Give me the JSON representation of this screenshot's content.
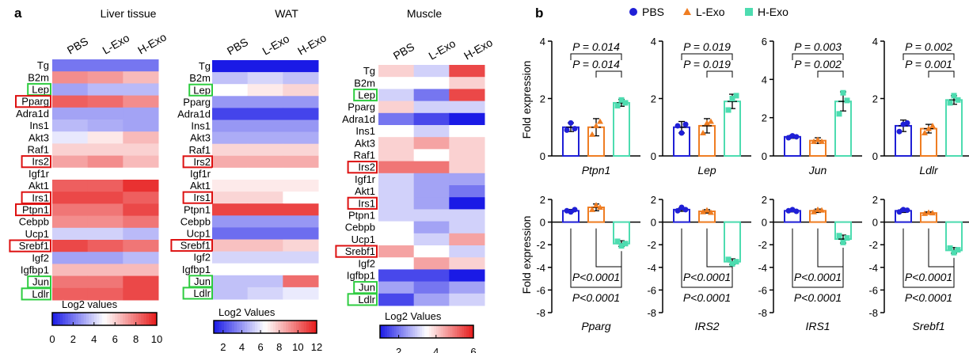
{
  "panel_a_label": "a",
  "panel_b_label": "b",
  "heatmap_legend_label": "Log2 values",
  "colors": {
    "low": "#1a1ae6",
    "mid": "#ffffff",
    "high": "#e61a1a",
    "pbs": "#1f1fd6",
    "lexo": "#ef7d22",
    "hexo": "#4ddcb0",
    "box_green": "#2ecc40",
    "box_red": "#dd1111"
  },
  "chart_data": [
    {
      "type": "heatmap",
      "title": "Liver tissue",
      "columns": [
        "PBS",
        "L-Exo",
        "H-Exo"
      ],
      "rows": [
        "Tg",
        "B2m",
        "Lep",
        "Pparg",
        "Adra1d",
        "Ins1",
        "Akt3",
        "Raf1",
        "Irs2",
        "Igf1r",
        "Akt1",
        "Irs1",
        "Ptpn1",
        "Cebpb",
        "Ucp1",
        "Srebf1",
        "Igf2",
        "Igfbp1",
        "Jun",
        "Ldlr"
      ],
      "values": [
        [
          2,
          2,
          2
        ],
        [
          7.5,
          7.2,
          6.5
        ],
        [
          3,
          3.5,
          3.5
        ],
        [
          8.5,
          8.2,
          7.5
        ],
        [
          3,
          3,
          3
        ],
        [
          3.5,
          3.2,
          3
        ],
        [
          4.5,
          5.5,
          6.5
        ],
        [
          6,
          6,
          6
        ],
        [
          7,
          7.5,
          6.5
        ],
        [
          5,
          5,
          5
        ],
        [
          8.5,
          8.5,
          9.5
        ],
        [
          9,
          9,
          8.5
        ],
        [
          8,
          8,
          9
        ],
        [
          7.5,
          7.5,
          8
        ],
        [
          4,
          4,
          3.5
        ],
        [
          9,
          8.5,
          8
        ],
        [
          3,
          3,
          3.5
        ],
        [
          6.5,
          6.5,
          6.5
        ],
        [
          8,
          8,
          9
        ],
        [
          8.5,
          8.5,
          9
        ]
      ],
      "legend": {
        "label": "Log2 values",
        "ticks": [
          0,
          2,
          4,
          6,
          8,
          10
        ],
        "range": [
          0,
          10
        ]
      },
      "boxed_green": [
        "Lep",
        "Jun",
        "Ldlr"
      ],
      "boxed_red": [
        "Pparg",
        "Irs2",
        "Irs1",
        "Ptpn1",
        "Srebf1"
      ]
    },
    {
      "type": "heatmap",
      "title": "WAT",
      "columns": [
        "PBS",
        "L-Exo",
        "H-Exo"
      ],
      "rows": [
        "Tg",
        "B2m",
        "Lep",
        "Pparg",
        "Adra1d",
        "Ins1",
        "Akt3",
        "Raf1",
        "Irs2",
        "Igf1r",
        "Akt1",
        "Irs1",
        "Ptpn1",
        "Cebpb",
        "Ucp1",
        "Srebf1",
        "Igf2",
        "Igfbp1",
        "Jun",
        "Ldlr"
      ],
      "values": [
        [
          1,
          1,
          1
        ],
        [
          5,
          5.5,
          5
        ],
        [
          6.5,
          7,
          7.5
        ],
        [
          4,
          4,
          4
        ],
        [
          2,
          2,
          2
        ],
        [
          4,
          4,
          4
        ],
        [
          4.5,
          4.5,
          4.5
        ],
        [
          7.5,
          7.5,
          7.5
        ],
        [
          8.5,
          8.5,
          8.5
        ],
        [
          6.5,
          6.5,
          6.5
        ],
        [
          7,
          7,
          7
        ],
        [
          7.5,
          7.5,
          6.5
        ],
        [
          11,
          11,
          11
        ],
        [
          4,
          4,
          4
        ],
        [
          3,
          3,
          3
        ],
        [
          8,
          8,
          7.5
        ],
        [
          5.5,
          5.5,
          5.5
        ],
        [
          6.5,
          6.5,
          6.5
        ],
        [
          5,
          5,
          10
        ],
        [
          5,
          5.5,
          6
        ]
      ],
      "legend": {
        "label": "Log2 Values",
        "ticks": [
          2,
          4,
          6,
          8,
          10,
          12
        ],
        "range": [
          1,
          12
        ]
      },
      "boxed_green": [
        "Lep",
        "Jun",
        "Ldlr"
      ],
      "boxed_red": [
        "Irs2",
        "Irs1",
        "Srebf1"
      ]
    },
    {
      "type": "heatmap",
      "title": "Muscle",
      "columns": [
        "PBS",
        "L-Exo",
        "H-Exo"
      ],
      "rows": [
        "Tg",
        "B2m",
        "Lep",
        "Pparg",
        "Adra1d",
        "Ins1",
        "Akt3",
        "Raf1",
        "Irs2",
        "Igf1r",
        "Akt1",
        "Irs1",
        "Ptpn1",
        "Cebpb",
        "Ucp1",
        "Srebf1",
        "Igf2",
        "Igfbp1",
        "Jun",
        "Ldlr"
      ],
      "values": [
        [
          4,
          3,
          5.5
        ],
        [
          3.5,
          3.5,
          4
        ],
        [
          3,
          2,
          5.5
        ],
        [
          4,
          3,
          3
        ],
        [
          2,
          1.5,
          1
        ],
        [
          3.5,
          3,
          3.5
        ],
        [
          4,
          4.5,
          4
        ],
        [
          4,
          3.5,
          4
        ],
        [
          5,
          5,
          4
        ],
        [
          3,
          2.5,
          2.5
        ],
        [
          3,
          2.5,
          2
        ],
        [
          3,
          2.5,
          1
        ],
        [
          3,
          3,
          3
        ],
        [
          3.5,
          2.5,
          3
        ],
        [
          3.5,
          3,
          4.5
        ],
        [
          4.5,
          3.5,
          3
        ],
        [
          3.5,
          4.5,
          4
        ],
        [
          1.5,
          1.5,
          1
        ],
        [
          2.5,
          2,
          2.5
        ],
        [
          1.5,
          2.5,
          3
        ]
      ],
      "legend": {
        "label": "Log2 Values",
        "ticks": [
          2,
          4,
          6
        ],
        "range": [
          1,
          6
        ]
      },
      "boxed_green": [
        "Lep",
        "Jun",
        "Ldlr"
      ],
      "boxed_red": [
        "Irs2",
        "Irs1",
        "Srebf1"
      ]
    },
    {
      "type": "bar",
      "legend": [
        "PBS",
        "L-Exo",
        "H-Exo"
      ],
      "ylabel": "Fold expression",
      "panels": [
        {
          "gene": "Ptpn1",
          "ylim": [
            0,
            4
          ],
          "ticks": [
            0,
            2,
            4
          ],
          "means": [
            1.0,
            1.0,
            1.85
          ],
          "errors": [
            0.15,
            0.3,
            0.12
          ],
          "points": [
            [
              0.9,
              1.15,
              0.95
            ],
            [
              0.75,
              1.05,
              1.2
            ],
            [
              1.75,
              1.95,
              1.85
            ]
          ],
          "pvalues": [
            {
              "from": 0,
              "to": 2,
              "label": "P = 0.014"
            },
            {
              "from": 1,
              "to": 2,
              "label": "P = 0.014"
            }
          ]
        },
        {
          "gene": "Lep",
          "ylim": [
            0,
            4
          ],
          "ticks": [
            0,
            2,
            4
          ],
          "means": [
            1.0,
            1.05,
            1.9
          ],
          "errors": [
            0.2,
            0.25,
            0.25
          ],
          "points": [
            [
              1.05,
              0.8,
              1.1
            ],
            [
              0.8,
              1.15,
              1.2
            ],
            [
              1.6,
              2.0,
              2.1
            ]
          ],
          "pvalues": [
            {
              "from": 0,
              "to": 2,
              "label": "P = 0.019"
            },
            {
              "from": 1,
              "to": 2,
              "label": "P = 0.019"
            }
          ]
        },
        {
          "gene": "Jun",
          "ylim": [
            0,
            6
          ],
          "ticks": [
            0,
            2,
            4,
            6
          ],
          "means": [
            1.0,
            0.8,
            2.85
          ],
          "errors": [
            0.08,
            0.15,
            0.5
          ],
          "points": [
            [
              0.95,
              1.05,
              1.0
            ],
            [
              0.75,
              0.85,
              0.75
            ],
            [
              2.2,
              3.3,
              2.9
            ]
          ],
          "pvalues": [
            {
              "from": 0,
              "to": 2,
              "label": "P = 0.003"
            },
            {
              "from": 1,
              "to": 2,
              "label": "P = 0.002"
            }
          ]
        },
        {
          "gene": "Ldlr",
          "ylim": [
            0,
            4
          ],
          "ticks": [
            0,
            2,
            4
          ],
          "means": [
            1.05,
            0.95,
            1.95
          ],
          "errors": [
            0.2,
            0.15,
            0.15
          ],
          "points": [
            [
              0.85,
              1.1,
              1.15
            ],
            [
              0.8,
              0.95,
              1.05
            ],
            [
              1.85,
              2.1,
              1.95
            ]
          ],
          "pvalues": [
            {
              "from": 0,
              "to": 2,
              "label": "P = 0.002"
            },
            {
              "from": 1,
              "to": 2,
              "label": "P = 0.001"
            }
          ]
        },
        {
          "gene": "Pparg",
          "ylim": [
            -8,
            2
          ],
          "ticks": [
            -8,
            -6,
            -4,
            -2,
            0,
            2
          ],
          "means": [
            1.0,
            1.3,
            -1.9
          ],
          "errors": [
            0.12,
            0.3,
            0.25
          ],
          "points": [
            [
              1.0,
              0.9,
              1.1
            ],
            [
              1.1,
              1.5,
              1.3
            ],
            [
              -1.7,
              -2.1,
              -1.9
            ]
          ],
          "pvalues": [
            {
              "from": 1,
              "to": 2,
              "label": "P<0.0001"
            },
            {
              "from": 0,
              "to": 2,
              "label": "P<0.0001"
            }
          ]
        },
        {
          "gene": "IRS2",
          "ylim": [
            -8,
            2
          ],
          "ticks": [
            -8,
            -6,
            -4,
            -2,
            0,
            2
          ],
          "means": [
            1.1,
            0.95,
            -3.5
          ],
          "errors": [
            0.15,
            0.15,
            0.25
          ],
          "points": [
            [
              1.0,
              1.3,
              1.1
            ],
            [
              0.9,
              1.05,
              0.85
            ],
            [
              -3.3,
              -3.7,
              -3.5
            ]
          ],
          "pvalues": [
            {
              "from": 1,
              "to": 2,
              "label": "P<0.0001"
            },
            {
              "from": 0,
              "to": 2,
              "label": "P<0.0001"
            }
          ]
        },
        {
          "gene": "IRS1",
          "ylim": [
            -8,
            2
          ],
          "ticks": [
            -8,
            -6,
            -4,
            -2,
            0,
            2
          ],
          "means": [
            1.0,
            1.0,
            -1.5
          ],
          "errors": [
            0.1,
            0.15,
            0.35
          ],
          "points": [
            [
              1.0,
              1.1,
              0.95
            ],
            [
              0.9,
              1.1,
              1.05
            ],
            [
              -1.2,
              -1.8,
              -1.4
            ]
          ],
          "pvalues": [
            {
              "from": 1,
              "to": 2,
              "label": "P<0.0001"
            },
            {
              "from": 0,
              "to": 2,
              "label": "P<0.0001"
            }
          ]
        },
        {
          "gene": "Srebf1",
          "ylim": [
            -8,
            2
          ],
          "ticks": [
            -8,
            -6,
            -4,
            -2,
            0,
            2
          ],
          "means": [
            1.0,
            0.8,
            -2.5
          ],
          "errors": [
            0.15,
            0.1,
            0.25
          ],
          "points": [
            [
              0.9,
              1.1,
              1.05
            ],
            [
              0.75,
              0.85,
              0.8
            ],
            [
              -2.3,
              -2.7,
              -2.45
            ]
          ],
          "pvalues": [
            {
              "from": 1,
              "to": 2,
              "label": "P<0.0001"
            },
            {
              "from": 0,
              "to": 2,
              "label": "P<0.0001"
            }
          ]
        }
      ]
    }
  ]
}
